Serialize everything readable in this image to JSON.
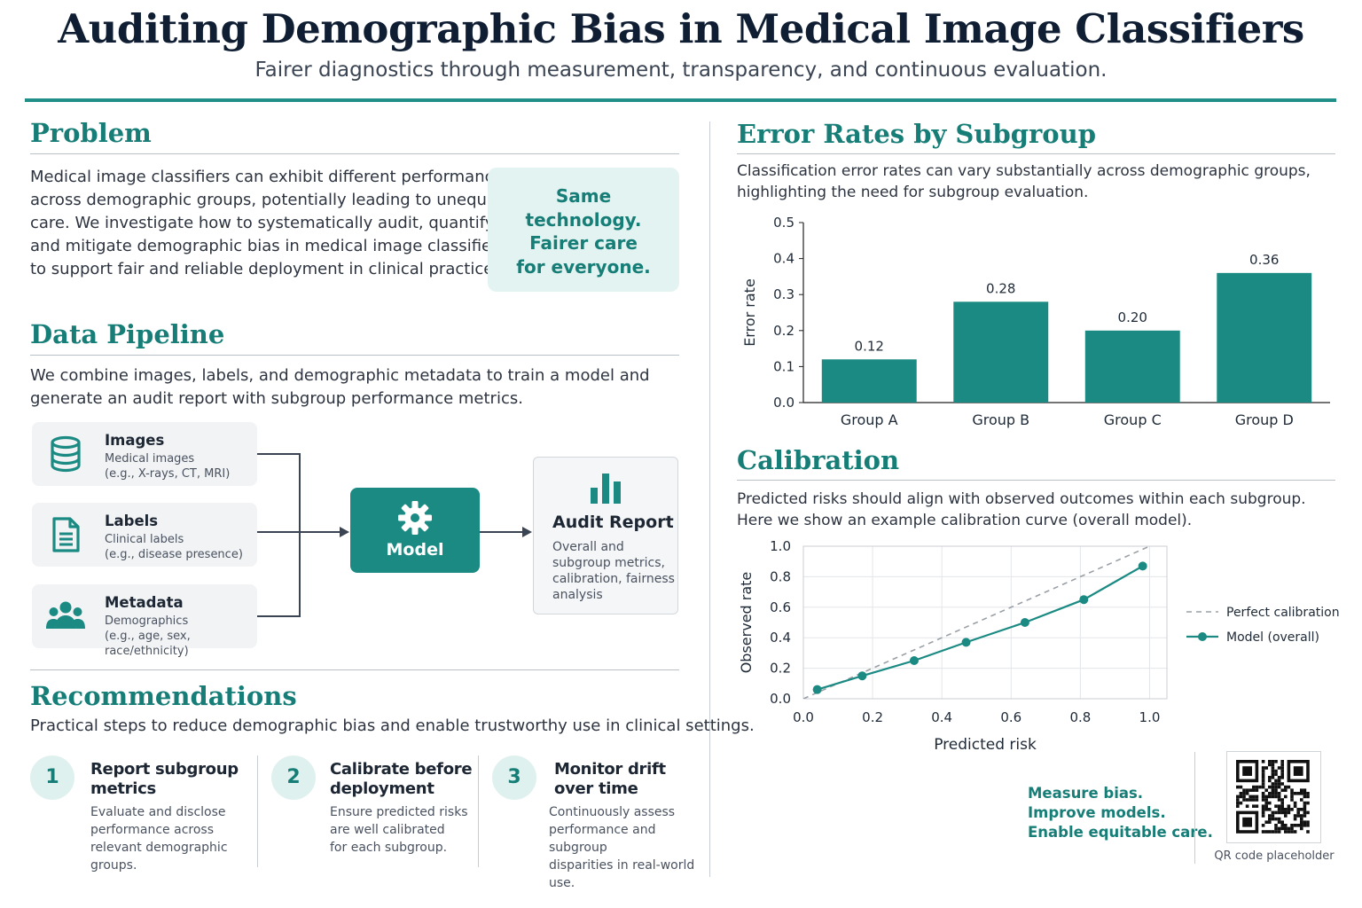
{
  "header": {
    "title": "Auditing Demographic Bias in Medical Image Classifiers",
    "subtitle": "Fairer diagnostics through measurement, transparency, and continuous evaluation."
  },
  "problem": {
    "heading": "Problem",
    "text_lines": [
      "Medical image classifiers can exhibit different performance",
      "across demographic groups, potentially leading to unequal",
      "care. We investigate how to systematically audit, quantify,",
      "and mitigate demographic bias in medical image classifiers",
      "to support fair and reliable deployment in clinical practice."
    ],
    "callout_lines": [
      "Same",
      "technology.",
      "Fairer care",
      "for everyone."
    ]
  },
  "pipeline": {
    "heading": "Data Pipeline",
    "text_lines": [
      "We combine images, labels, and demographic metadata to train a model and",
      "generate an audit report with subgroup performance metrics."
    ],
    "inputs": [
      {
        "title": "Images",
        "desc1": "Medical images",
        "desc2": "(e.g., X-rays, CT, MRI)",
        "icon": "database-icon"
      },
      {
        "title": "Labels",
        "desc1": "Clinical labels",
        "desc2": "(e.g., disease presence)",
        "icon": "document-icon"
      },
      {
        "title": "Metadata",
        "desc1": "Demographics",
        "desc2": "(e.g., age, sex, race/ethnicity)",
        "icon": "people-icon"
      }
    ],
    "model_label": "Model",
    "audit": {
      "title": "Audit Report",
      "desc_lines": [
        "Overall and",
        "subgroup metrics,",
        "calibration, fairness",
        "analysis"
      ]
    }
  },
  "recommendations": {
    "heading": "Recommendations",
    "intro": "Practical steps to reduce demographic bias and enable trustworthy use in clinical settings.",
    "items": [
      {
        "num": "1",
        "title1": "Report subgroup",
        "title2": "metrics",
        "desc1": "Evaluate and disclose",
        "desc2": "performance across",
        "desc3": "relevant demographic groups."
      },
      {
        "num": "2",
        "title1": "Calibrate before",
        "title2": "deployment",
        "desc1": "Ensure predicted risks",
        "desc2": "are well calibrated",
        "desc3": "for each subgroup."
      },
      {
        "num": "3",
        "title1": "Monitor drift",
        "title2": "over time",
        "desc1": "Continuously assess",
        "desc2": "performance and subgroup",
        "desc3": "disparities in real-world use."
      }
    ]
  },
  "error_section": {
    "heading": "Error Rates by Subgroup",
    "text_lines": [
      "Classification error rates can vary substantially across demographic groups,",
      "highlighting the need for subgroup evaluation."
    ]
  },
  "calibration_section": {
    "heading": "Calibration",
    "text_lines": [
      "Predicted risks should align with observed outcomes within each subgroup.",
      "Here we show an example calibration curve (overall model)."
    ]
  },
  "footer": {
    "message_lines": [
      "Measure bias.",
      "Improve models.",
      "Enable equitable care."
    ],
    "qr_caption": "QR code placeholder"
  },
  "colors": {
    "accent": "#1a8a83",
    "heading": "#167d77",
    "callout_bg": "#e3f3f1",
    "dashed": "#9aa0a6"
  },
  "chart_data": [
    {
      "type": "bar",
      "categories": [
        "Group A",
        "Group B",
        "Group C",
        "Group D"
      ],
      "values": [
        0.12,
        0.28,
        0.2,
        0.36
      ],
      "data_labels": [
        "0.12",
        "0.28",
        "0.20",
        "0.36"
      ],
      "title": "",
      "xlabel": "",
      "ylabel": "Error rate",
      "ylim": [
        0,
        0.5
      ],
      "yticks": [
        "0.0",
        "0.1",
        "0.2",
        "0.3",
        "0.4",
        "0.5"
      ],
      "grid": false
    },
    {
      "type": "line",
      "title": "",
      "xlabel": "Predicted risk",
      "ylabel": "Observed rate",
      "xlim": [
        0,
        1.05
      ],
      "ylim": [
        0,
        1.0
      ],
      "xticks": [
        "0.0",
        "0.2",
        "0.4",
        "0.6",
        "0.8",
        "1.0"
      ],
      "yticks": [
        "0.0",
        "0.2",
        "0.4",
        "0.6",
        "0.8",
        "1.0"
      ],
      "grid": true,
      "legend_position": "right",
      "series": [
        {
          "name": "Perfect calibration",
          "style": "dashed",
          "x": [
            0,
            1.05
          ],
          "y": [
            0,
            1.05
          ]
        },
        {
          "name": "Model (overall)",
          "style": "solid-markers",
          "x": [
            0.04,
            0.17,
            0.32,
            0.47,
            0.64,
            0.81,
            0.98
          ],
          "y": [
            0.06,
            0.15,
            0.25,
            0.37,
            0.5,
            0.65,
            0.87
          ]
        }
      ]
    }
  ]
}
